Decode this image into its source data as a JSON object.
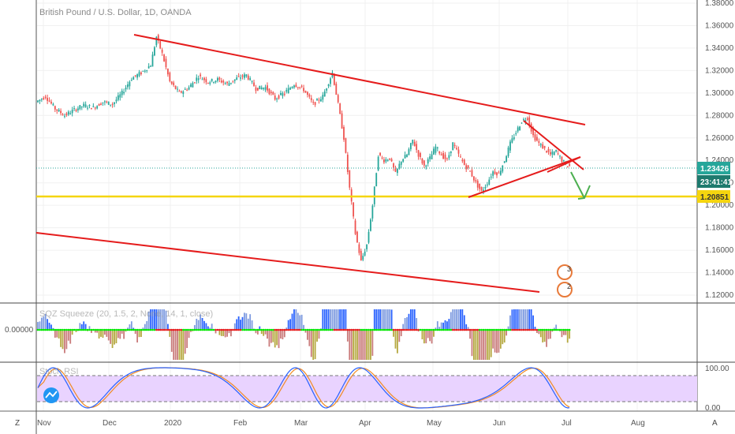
{
  "chart_data": {
    "type": "candlestick",
    "title": "British Pound / U.S. Dollar, 1D, OANDA",
    "x_ticks": [
      "Nov",
      "Dec",
      "2020",
      "Feb",
      "Mar",
      "Apr",
      "May",
      "Jun",
      "Jul",
      "Aug"
    ],
    "y_ticks": [
      "1.38000",
      "1.36000",
      "1.34000",
      "1.32000",
      "1.30000",
      "1.28000",
      "1.26000",
      "1.24000",
      "1.22000",
      "1.20000",
      "1.18000",
      "1.16000",
      "1.14000",
      "1.12000"
    ],
    "ylim": [
      1.115,
      1.385
    ],
    "price_path": [
      [
        0,
        1.292
      ],
      [
        5,
        1.297
      ],
      [
        10,
        1.286
      ],
      [
        15,
        1.28
      ],
      [
        20,
        1.285
      ],
      [
        25,
        1.289
      ],
      [
        30,
        1.287
      ],
      [
        35,
        1.292
      ],
      [
        40,
        1.29
      ],
      [
        45,
        1.3
      ],
      [
        50,
        1.313
      ],
      [
        55,
        1.318
      ],
      [
        60,
        1.325
      ],
      [
        63,
        1.35
      ],
      [
        66,
        1.335
      ],
      [
        70,
        1.31
      ],
      [
        75,
        1.3
      ],
      [
        80,
        1.305
      ],
      [
        85,
        1.315
      ],
      [
        90,
        1.31
      ],
      [
        95,
        1.312
      ],
      [
        100,
        1.308
      ],
      [
        105,
        1.313
      ],
      [
        110,
        1.316
      ],
      [
        115,
        1.304
      ],
      [
        120,
        1.305
      ],
      [
        125,
        1.295
      ],
      [
        130,
        1.3
      ],
      [
        135,
        1.308
      ],
      [
        140,
        1.303
      ],
      [
        145,
        1.29
      ],
      [
        150,
        1.297
      ],
      [
        155,
        1.318
      ],
      [
        158,
        1.29
      ],
      [
        161,
        1.26
      ],
      [
        164,
        1.215
      ],
      [
        167,
        1.175
      ],
      [
        170,
        1.15
      ],
      [
        173,
        1.165
      ],
      [
        176,
        1.2
      ],
      [
        179,
        1.245
      ],
      [
        182,
        1.24
      ],
      [
        185,
        1.242
      ],
      [
        188,
        1.228
      ],
      [
        191,
        1.24
      ],
      [
        194,
        1.245
      ],
      [
        197,
        1.258
      ],
      [
        200,
        1.245
      ],
      [
        203,
        1.235
      ],
      [
        206,
        1.242
      ],
      [
        209,
        1.252
      ],
      [
        212,
        1.245
      ],
      [
        215,
        1.24
      ],
      [
        218,
        1.255
      ],
      [
        221,
        1.245
      ],
      [
        224,
        1.236
      ],
      [
        227,
        1.23
      ],
      [
        230,
        1.22
      ],
      [
        233,
        1.212
      ],
      [
        236,
        1.22
      ],
      [
        239,
        1.23
      ],
      [
        242,
        1.228
      ],
      [
        245,
        1.24
      ],
      [
        248,
        1.255
      ],
      [
        251,
        1.265
      ],
      [
        254,
        1.275
      ],
      [
        257,
        1.278
      ],
      [
        260,
        1.262
      ],
      [
        263,
        1.255
      ],
      [
        266,
        1.25
      ],
      [
        269,
        1.245
      ],
      [
        272,
        1.248
      ],
      [
        275,
        1.24
      ],
      [
        278,
        1.235
      ]
    ],
    "levels": {
      "last_price": "1.23426",
      "countdown": "23:41:41",
      "support": "1.20851"
    },
    "oscillator_1": {
      "label": "SQZ Squeeze (20, 1.5, 2, None, 14, 1, close)",
      "zero_label": "0.00000"
    },
    "oscillator_2": {
      "label": "Stoch RSI",
      "upper_label": "100.00",
      "lower_label": "0.00"
    },
    "event_badges": [
      "3",
      "2"
    ],
    "colors": {
      "up": "#26a69a",
      "down": "#ef5350",
      "trend": "#e51c1c",
      "support": "#f5d50f",
      "projection": "#4caf50",
      "rsi_fill": "#e4c9ff",
      "last_price_tag": "#26a69a",
      "countdown_tag": "#1e7a6e",
      "support_tag": "#f5d50f"
    }
  }
}
